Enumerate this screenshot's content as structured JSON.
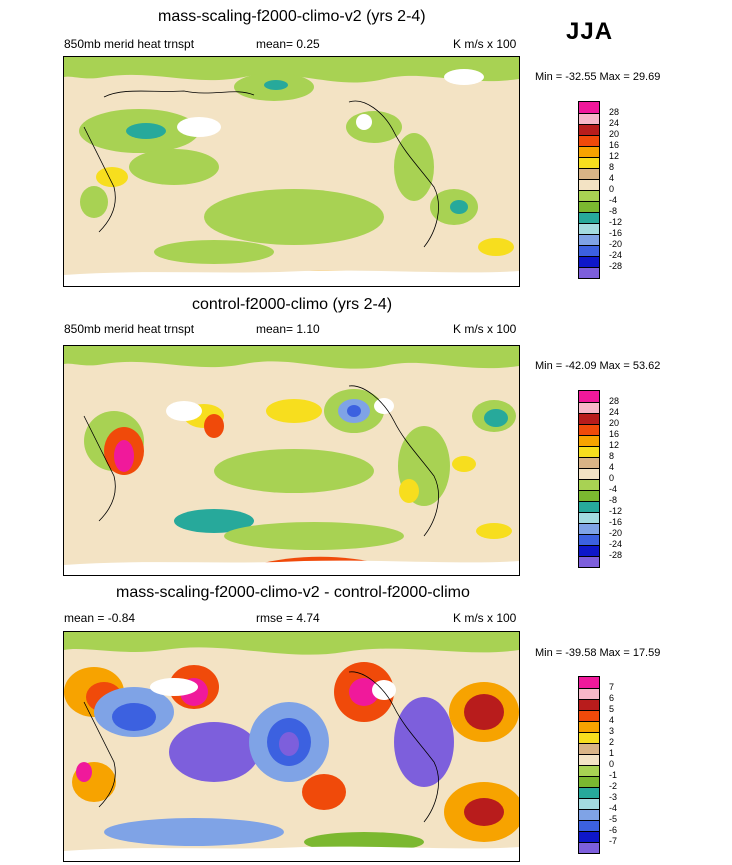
{
  "season": "JJA",
  "panels": [
    {
      "title": "mass-scaling-f2000-climo-v2 (yrs 2-4)",
      "left_label": "850mb merid heat trnspt",
      "center_label": "mean=  0.25",
      "units": "K m/s x 100",
      "minmax": "Min = -32.55 Max =  29.69"
    },
    {
      "title": "control-f2000-climo (yrs 2-4)",
      "left_label": "850mb merid heat trnspt",
      "center_label": "mean=  1.10",
      "units": "K m/s x 100",
      "minmax": "Min = -42.09 Max =  53.62"
    },
    {
      "title": "mass-scaling-f2000-climo-v2 - control-f2000-climo",
      "left_label": "mean = -0.84",
      "center_label": "rmse =  4.74",
      "units": "K m/s x 100",
      "minmax": "Min = -39.58 Max =  17.59"
    }
  ],
  "colorbar_colors": [
    "#f0199b",
    "#f7b7c8",
    "#b81c1c",
    "#f04a0a",
    "#f7a300",
    "#f7de1e",
    "#d9b486",
    "#f3e3c4",
    "#a8d253",
    "#7bb830",
    "#27a99b",
    "#a3dbe0",
    "#7fa3e6",
    "#3c61e0",
    "#0e17c9",
    "#7d5fdc"
  ],
  "chart_data": [
    {
      "type": "heatmap",
      "title": "mass-scaling-f2000-climo-v2 (yrs 2-4)",
      "variable": "850mb merid heat trnspt",
      "units": "K m/s x 100",
      "mean": 0.25,
      "min": -32.55,
      "max": 29.69,
      "levels": [
        "28",
        "24",
        "20",
        "16",
        "12",
        "8",
        "4",
        "0",
        "-4",
        "-8",
        "-12",
        "-16",
        "-20",
        "-24",
        "-28"
      ]
    },
    {
      "type": "heatmap",
      "title": "control-f2000-climo (yrs 2-4)",
      "variable": "850mb merid heat trnspt",
      "units": "K m/s x 100",
      "mean": 1.1,
      "min": -42.09,
      "max": 53.62,
      "levels": [
        "28",
        "24",
        "20",
        "16",
        "12",
        "8",
        "4",
        "0",
        "-4",
        "-8",
        "-12",
        "-16",
        "-20",
        "-24",
        "-28"
      ]
    },
    {
      "type": "heatmap",
      "title": "mass-scaling-f2000-climo-v2 - control-f2000-climo",
      "units": "K m/s x 100",
      "mean": -0.84,
      "rmse": 4.74,
      "min": -39.58,
      "max": 17.59,
      "levels": [
        "7",
        "6",
        "5",
        "4",
        "3",
        "2",
        "1",
        "0",
        "-1",
        "-2",
        "-3",
        "-4",
        "-5",
        "-6",
        "-7"
      ]
    }
  ]
}
